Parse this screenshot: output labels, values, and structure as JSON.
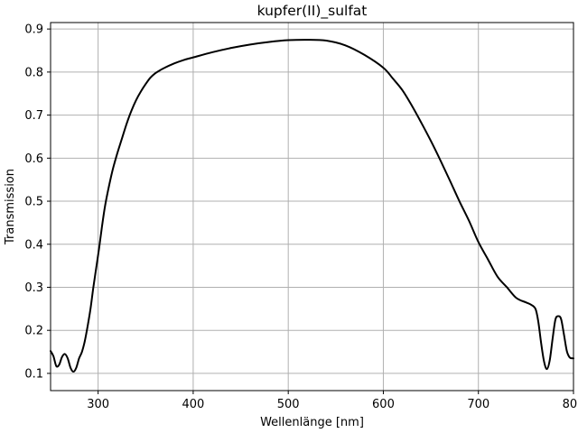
{
  "chart_data": {
    "type": "line",
    "title": "kupfer(II)_sulfat",
    "xlabel": "Wellenlänge [nm]",
    "ylabel": "Transmission",
    "xlim": [
      250,
      800
    ],
    "ylim": [
      0.06,
      0.915
    ],
    "grid": true,
    "xticks": [
      300,
      400,
      500,
      600,
      700,
      800
    ],
    "yticks": [
      0.1,
      0.2,
      0.3,
      0.4,
      0.5,
      0.6,
      0.7,
      0.8,
      0.9
    ],
    "xtick_labels": [
      "300",
      "400",
      "500",
      "600",
      "700",
      "800"
    ],
    "ytick_labels": [
      "0.1",
      "0.2",
      "0.3",
      "0.4",
      "0.5",
      "0.6",
      "0.7",
      "0.8",
      "0.9"
    ],
    "series": [
      {
        "color": "#000000",
        "x": [
          250,
          253,
          256,
          259,
          262,
          265,
          268,
          271,
          274,
          277,
          280,
          283,
          286,
          289,
          292,
          295,
          298,
          301,
          304,
          307,
          310,
          315,
          320,
          325,
          330,
          335,
          340,
          345,
          350,
          355,
          360,
          365,
          370,
          380,
          390,
          400,
          420,
          440,
          460,
          480,
          500,
          520,
          540,
          560,
          580,
          600,
          610,
          620,
          630,
          640,
          650,
          660,
          670,
          680,
          690,
          700,
          710,
          720,
          730,
          740,
          750,
          755,
          760,
          763,
          766,
          769,
          772,
          775,
          778,
          781,
          784,
          787,
          790,
          793,
          796,
          799,
          800
        ],
        "y": [
          0.152,
          0.14,
          0.117,
          0.12,
          0.138,
          0.145,
          0.135,
          0.113,
          0.104,
          0.113,
          0.135,
          0.15,
          0.175,
          0.21,
          0.25,
          0.3,
          0.345,
          0.39,
          0.44,
          0.485,
          0.52,
          0.57,
          0.61,
          0.645,
          0.68,
          0.71,
          0.735,
          0.755,
          0.772,
          0.787,
          0.797,
          0.804,
          0.81,
          0.82,
          0.828,
          0.834,
          0.846,
          0.856,
          0.864,
          0.87,
          0.874,
          0.875,
          0.873,
          0.862,
          0.84,
          0.81,
          0.785,
          0.758,
          0.722,
          0.682,
          0.64,
          0.595,
          0.548,
          0.5,
          0.455,
          0.405,
          0.365,
          0.325,
          0.3,
          0.275,
          0.265,
          0.26,
          0.25,
          0.22,
          0.17,
          0.128,
          0.11,
          0.13,
          0.18,
          0.225,
          0.233,
          0.226,
          0.19,
          0.152,
          0.137,
          0.135,
          0.135
        ]
      }
    ]
  }
}
